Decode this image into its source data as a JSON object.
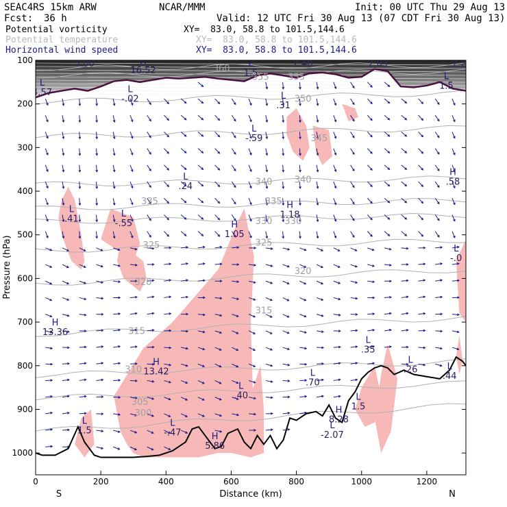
{
  "header": {
    "model": "SEAC4RS 15km ARW",
    "org": "NCAR/MMM",
    "init": "Init: 00 UTC Thu 29 Aug 13",
    "fcst_label": "Fcst:",
    "fcst_value": "36 h",
    "valid": "Valid: 12 UTC Fri 30 Aug 13 (07 CDT Fri 30 Aug 13)"
  },
  "fields": [
    {
      "name": "Potential vorticity",
      "xy": "XY=  83.0, 58.8 to 101.5,144.6",
      "color": "#000000"
    },
    {
      "name": "Potential temperature",
      "xy": "XY=  83.0, 58.8 to 101.5,144.6",
      "color": "#b8b8b8"
    },
    {
      "name": "Horizontal wind speed",
      "xy": "XY=  83.0, 58.8 to 101.5,144.6",
      "color": "#1a1a8c"
    }
  ],
  "colors": {
    "pv_fill": "#f7b8b8",
    "theta": "#b0b0b0",
    "wind": "#1a1a8c",
    "terrain": "#000000",
    "tropopause": "#4a1040"
  },
  "chart_data": {
    "type": "cross-section",
    "xlabel": "Distance (km)",
    "ylabel": "Pressure (hPa)",
    "xlim": [
      0,
      1320
    ],
    "ylim": [
      1050,
      100
    ],
    "x_ticks": [
      0,
      200,
      400,
      600,
      800,
      1000,
      1200
    ],
    "y_ticks": [
      100,
      200,
      300,
      400,
      500,
      600,
      700,
      800,
      900,
      1000
    ],
    "endpoints": [
      "S",
      "N"
    ],
    "terrain": {
      "x": [
        0,
        20,
        60,
        100,
        130,
        150,
        180,
        200,
        260,
        300,
        340,
        380,
        420,
        460,
        480,
        500,
        520,
        550,
        570,
        590,
        620,
        640,
        660,
        680,
        700,
        720,
        740,
        760,
        780,
        800,
        830,
        860,
        880,
        900,
        920,
        940,
        960,
        980,
        1000,
        1020,
        1040,
        1060,
        1080,
        1100,
        1130,
        1160,
        1200,
        1240,
        1270,
        1290,
        1310,
        1320
      ],
      "p": [
        1000,
        1005,
        1005,
        990,
        940,
        975,
        1005,
        1010,
        1010,
        1010,
        1008,
        1005,
        995,
        975,
        945,
        940,
        960,
        990,
        985,
        955,
        945,
        975,
        990,
        960,
        980,
        960,
        990,
        970,
        920,
        925,
        910,
        905,
        915,
        890,
        920,
        930,
        880,
        860,
        830,
        815,
        805,
        800,
        805,
        820,
        810,
        820,
        825,
        830,
        810,
        780,
        790,
        800
      ]
    },
    "tropopause": {
      "x": [
        0,
        40,
        80,
        120,
        160,
        200,
        240,
        280,
        320,
        360,
        400,
        440,
        480,
        520,
        560,
        600,
        640,
        680,
        720,
        760,
        800,
        840,
        880,
        920,
        960,
        1000,
        1040,
        1080,
        1120,
        1160,
        1200,
        1240,
        1280,
        1320
      ],
      "p": [
        185,
        175,
        170,
        165,
        170,
        160,
        148,
        145,
        150,
        145,
        140,
        142,
        140,
        138,
        142,
        145,
        148,
        135,
        130,
        135,
        140,
        130,
        128,
        132,
        140,
        138,
        120,
        125,
        160,
        162,
        158,
        150,
        165,
        170
      ]
    },
    "theta_levels": [
      {
        "label": "300",
        "p_start": 950,
        "p_end": 890
      },
      {
        "label": "305",
        "p_start": 875,
        "p_end": 840
      },
      {
        "label": "310",
        "p_start": 822,
        "p_end": 790
      },
      {
        "label": "315",
        "p_start": 728,
        "p_end": 690
      },
      {
        "label": "320",
        "p_start": 612,
        "p_end": 580
      },
      {
        "label": "325",
        "p_start": 537,
        "p_end": 512
      },
      {
        "label": "330",
        "p_start": 470,
        "p_end": 455
      },
      {
        "label": "335",
        "p_start": 440,
        "p_end": 420
      },
      {
        "label": "340",
        "p_start": 385,
        "p_end": 370
      },
      {
        "label": "345",
        "p_start": 275,
        "p_end": 255
      },
      {
        "label": "350",
        "p_start": 195,
        "p_end": 175
      },
      {
        "label": "355",
        "p_start": 135,
        "p_end": 125
      },
      {
        "label": "360",
        "p_start": 118,
        "p_end": 110
      }
    ],
    "theta_labels": [
      {
        "text": "300",
        "x": 330,
        "p": 915
      },
      {
        "text": "305",
        "x": 320,
        "p": 890
      },
      {
        "text": "310",
        "x": 300,
        "p": 815
      },
      {
        "text": "315",
        "x": 310,
        "p": 727
      },
      {
        "text": "315",
        "x": 700,
        "p": 680
      },
      {
        "text": "320",
        "x": 330,
        "p": 615
      },
      {
        "text": "320",
        "x": 820,
        "p": 590
      },
      {
        "text": "325",
        "x": 355,
        "p": 530
      },
      {
        "text": "325",
        "x": 700,
        "p": 525
      },
      {
        "text": "330",
        "x": 700,
        "p": 475
      },
      {
        "text": "330",
        "x": 790,
        "p": 475
      },
      {
        "text": "335",
        "x": 350,
        "p": 430
      },
      {
        "text": "335",
        "x": 730,
        "p": 430
      },
      {
        "text": "340",
        "x": 700,
        "p": 385
      },
      {
        "text": "340",
        "x": 820,
        "p": 380
      },
      {
        "text": "345",
        "x": 870,
        "p": 285
      },
      {
        "text": "350",
        "x": 820,
        "p": 195
      },
      {
        "text": "355",
        "x": 690,
        "p": 145
      },
      {
        "text": "355",
        "x": 800,
        "p": 145
      },
      {
        "text": "360",
        "x": 570,
        "p": 125
      }
    ],
    "pv_regions": [
      [
        [
          100,
          390
        ],
        [
          120,
          420
        ],
        [
          140,
          500
        ],
        [
          150,
          560
        ],
        [
          140,
          580
        ],
        [
          110,
          560
        ],
        [
          80,
          500
        ],
        [
          70,
          460
        ],
        [
          80,
          420
        ]
      ],
      [
        [
          230,
          440
        ],
        [
          300,
          460
        ],
        [
          320,
          520
        ],
        [
          300,
          560
        ],
        [
          260,
          540
        ],
        [
          220,
          520
        ],
        [
          200,
          510
        ]
      ],
      [
        [
          260,
          520
        ],
        [
          330,
          560
        ],
        [
          340,
          600
        ],
        [
          320,
          630
        ],
        [
          270,
          600
        ],
        [
          250,
          560
        ]
      ],
      [
        [
          240,
          870
        ],
        [
          330,
          760
        ],
        [
          420,
          700
        ],
        [
          560,
          580
        ],
        [
          620,
          470
        ],
        [
          640,
          440
        ],
        [
          670,
          550
        ],
        [
          660,
          700
        ],
        [
          670,
          950
        ],
        [
          620,
          1000
        ],
        [
          560,
          1000
        ],
        [
          500,
          1010
        ],
        [
          400,
          1010
        ],
        [
          330,
          1010
        ],
        [
          300,
          1000
        ],
        [
          280,
          980
        ],
        [
          260,
          950
        ]
      ],
      [
        [
          600,
          1000
        ],
        [
          660,
          1010
        ],
        [
          700,
          1000
        ],
        [
          700,
          900
        ],
        [
          690,
          800
        ]
      ],
      [
        [
          770,
          230
        ],
        [
          800,
          210
        ],
        [
          830,
          250
        ],
        [
          840,
          300
        ],
        [
          820,
          330
        ],
        [
          790,
          310
        ],
        [
          770,
          270
        ]
      ],
      [
        [
          850,
          250
        ],
        [
          900,
          260
        ],
        [
          910,
          320
        ],
        [
          880,
          340
        ],
        [
          860,
          310
        ]
      ],
      [
        [
          940,
          200
        ],
        [
          980,
          210
        ],
        [
          990,
          230
        ],
        [
          960,
          240
        ]
      ],
      [
        [
          1000,
          850
        ],
        [
          1040,
          800
        ],
        [
          1060,
          870
        ],
        [
          1040,
          930
        ],
        [
          1010,
          940
        ],
        [
          980,
          900
        ]
      ],
      [
        [
          1080,
          750
        ],
        [
          1110,
          830
        ],
        [
          1090,
          950
        ],
        [
          1060,
          1000
        ],
        [
          1040,
          920
        ],
        [
          1060,
          820
        ]
      ],
      [
        [
          1290,
          560
        ],
        [
          1320,
          510
        ],
        [
          1320,
          700
        ],
        [
          1300,
          680
        ]
      ],
      [
        [
          140,
          920
        ],
        [
          170,
          900
        ],
        [
          180,
          980
        ],
        [
          150,
          1010
        ],
        [
          120,
          980
        ]
      ],
      [
        [
          1300,
          730
        ],
        [
          1310,
          790
        ],
        [
          1300,
          820
        ],
        [
          1290,
          780
        ]
      ]
    ],
    "pv_annotations": [
      {
        "type": "L",
        "value": "4.57",
        "x": 20,
        "p": 180
      },
      {
        "type": "H",
        "value": "16.52",
        "x": 330,
        "p": 130
      },
      {
        "type": "L",
        "value": "-.02",
        "x": 290,
        "p": 195
      },
      {
        "type": "L",
        "value": ".41",
        "x": 110,
        "p": 470
      },
      {
        "type": "L",
        "value": "-.55",
        "x": 270,
        "p": 480
      },
      {
        "type": "L",
        "value": ".24",
        "x": 460,
        "p": 395
      },
      {
        "type": "H",
        "value": "1.05",
        "x": 610,
        "p": 505
      },
      {
        "type": "H",
        "value": "1.18",
        "x": 780,
        "p": 460
      },
      {
        "type": "L",
        "value": ".31",
        "x": 760,
        "p": 210
      },
      {
        "type": "L",
        "value": "-.59",
        "x": 670,
        "p": 285
      },
      {
        "type": "H",
        "value": ".58",
        "x": 1280,
        "p": 385
      },
      {
        "type": "L",
        "value": "-.0",
        "x": 1290,
        "p": 560
      },
      {
        "type": "H",
        "value": "13.36",
        "x": 60,
        "p": 730
      },
      {
        "type": "H",
        "value": "13.42",
        "x": 370,
        "p": 820
      },
      {
        "type": "L",
        "value": ".40",
        "x": 630,
        "p": 875
      },
      {
        "type": "L",
        "value": ".70",
        "x": 850,
        "p": 845
      },
      {
        "type": "L",
        "value": ".35",
        "x": 1020,
        "p": 770
      },
      {
        "type": "L",
        "value": ".26",
        "x": 1150,
        "p": 815
      },
      {
        "type": "L",
        "value": ".44",
        "x": 1270,
        "p": 830
      },
      {
        "type": "L",
        "value": "-.47",
        "x": 420,
        "p": 960
      },
      {
        "type": "H",
        "value": "5.86",
        "x": 550,
        "p": 990
      },
      {
        "type": "L",
        "value": "1.5",
        "x": 150,
        "p": 955
      },
      {
        "type": "H",
        "value": "8.28",
        "x": 930,
        "p": 930
      },
      {
        "type": "L",
        "value": "-2.07",
        "x": 910,
        "p": 965
      },
      {
        "type": "L",
        "value": "1.5",
        "x": 990,
        "p": 900
      },
      {
        "type": "L",
        "value": "1.5",
        "x": 1260,
        "p": 165
      },
      {
        "type": "L",
        "value": "1.5",
        "x": 660,
        "p": 135
      }
    ],
    "top_labels": [
      "5.00",
      "2.48",
      "2.03",
      "2.2"
    ]
  }
}
